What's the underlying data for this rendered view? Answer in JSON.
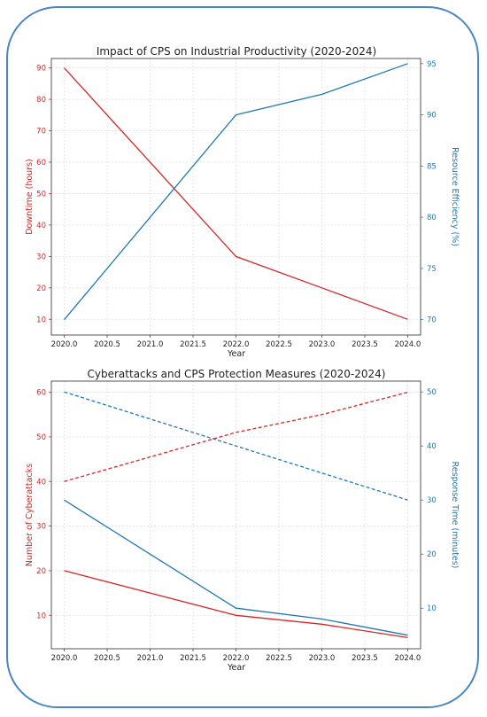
{
  "colors": {
    "frame": "#4a86c2",
    "red": "#d62728",
    "blue": "#1f77b4"
  },
  "chart_data": [
    {
      "type": "line",
      "title": "Impact of CPS on Industrial Productivity (2020-2024)",
      "xlabel": "Year",
      "ylabel_left": "Downtime (hours)",
      "ylabel_right": "Resource Efficiency (%)",
      "xlim": [
        2019.85,
        2024.15
      ],
      "ylim_left": [
        5,
        93
      ],
      "ylim_right": [
        68.5,
        95.5
      ],
      "xticks": [
        "2020.0",
        "2020.5",
        "2021.0",
        "2021.5",
        "2022.0",
        "2022.5",
        "2023.0",
        "2023.5",
        "2024.0"
      ],
      "yticks_left": [
        "10",
        "20",
        "30",
        "40",
        "50",
        "60",
        "70",
        "80",
        "90"
      ],
      "yticks_right": [
        "70",
        "75",
        "80",
        "85",
        "90",
        "95"
      ],
      "grid": true,
      "series": [
        {
          "axis": "left",
          "color": "red",
          "dashed": false,
          "x": [
            2020,
            2022,
            2023,
            2024
          ],
          "values": [
            90,
            30,
            20,
            10
          ]
        },
        {
          "axis": "right",
          "color": "blue",
          "dashed": false,
          "x": [
            2020,
            2022,
            2023,
            2024
          ],
          "values": [
            70,
            90,
            92,
            95
          ]
        }
      ]
    },
    {
      "type": "line",
      "title": "Cyberattacks and CPS Protection Measures (2020-2024)",
      "xlabel": "Year",
      "ylabel_left": "Number of Cyberattacks",
      "ylabel_right": "Response Time (minutes)",
      "xlim": [
        2019.85,
        2024.15
      ],
      "ylim_left": [
        2.5,
        62.5
      ],
      "ylim_right": [
        2.5,
        52
      ],
      "xticks": [
        "2020.0",
        "2020.5",
        "2021.0",
        "2021.5",
        "2022.0",
        "2022.5",
        "2023.0",
        "2023.5",
        "2024.0"
      ],
      "yticks_left": [
        "10",
        "20",
        "30",
        "40",
        "50",
        "60"
      ],
      "yticks_right": [
        "10",
        "20",
        "30",
        "40",
        "50"
      ],
      "grid": true,
      "series": [
        {
          "axis": "left",
          "color": "red",
          "dashed": true,
          "x": [
            2020,
            2022,
            2023,
            2024
          ],
          "values": [
            40,
            51,
            55,
            60
          ]
        },
        {
          "axis": "left",
          "color": "red",
          "dashed": false,
          "x": [
            2020,
            2022,
            2023,
            2024
          ],
          "values": [
            20,
            10,
            8,
            5
          ]
        },
        {
          "axis": "right",
          "color": "blue",
          "dashed": true,
          "x": [
            2020,
            2022,
            2023,
            2024
          ],
          "values": [
            50,
            40,
            35,
            30
          ]
        },
        {
          "axis": "right",
          "color": "blue",
          "dashed": false,
          "x": [
            2020,
            2022,
            2023,
            2024
          ],
          "values": [
            30,
            10,
            8,
            5
          ]
        }
      ]
    }
  ]
}
